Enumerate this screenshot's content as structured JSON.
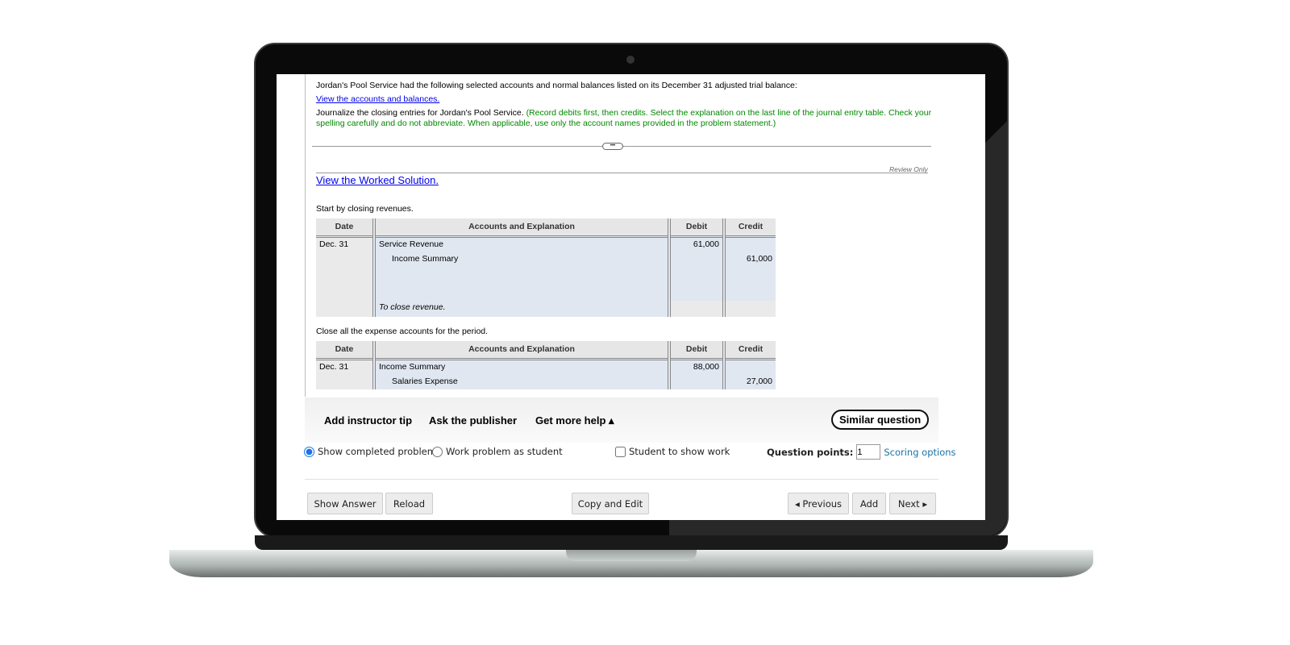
{
  "problem": {
    "intro": "Jordan's Pool Service had the following selected accounts and normal balances listed on its December 31 adjusted trial balance:",
    "link": "View the accounts and balances.",
    "instruction": "Journalize the closing entries for Jordan's Pool Service.",
    "instruction_note": "(Record debits first, then credits. Select the explanation on the last line of the journal entry table. Check your spelling carefully and do not abbreviate. When applicable, use only the account names provided in the problem statement.)",
    "expand": "•••"
  },
  "review_only": "Review Only",
  "worked_solution": "View the Worked Solution.",
  "headers": {
    "date": "Date",
    "accounts": "Accounts and Explanation",
    "debit": "Debit",
    "credit": "Credit"
  },
  "step1": {
    "label": "Start by closing revenues.",
    "date": "Dec. 31",
    "rows": [
      {
        "account": "Service Revenue",
        "debit": "61,000",
        "credit": ""
      },
      {
        "account": "Income Summary",
        "debit": "",
        "credit": "61,000"
      }
    ],
    "explanation": "To close revenue."
  },
  "step2": {
    "label": "Close all the expense accounts for the period.",
    "date": "Dec. 31",
    "rows": [
      {
        "account": "Income Summary",
        "debit": "88,000",
        "credit": ""
      },
      {
        "account": "Salaries Expense",
        "debit": "",
        "credit": "27,000"
      }
    ]
  },
  "help": {
    "tip": "Add instructor tip",
    "publisher": "Ask the publisher",
    "more": "Get more help ▴",
    "similar": "Similar question"
  },
  "options": {
    "show_completed": "Show completed problem",
    "work_as_student": "Work problem as student",
    "student_show_work": "Student to show work",
    "points_label": "Question points:",
    "points_value": "1",
    "scoring": "Scoring options",
    "selected": "show_completed"
  },
  "buttons": {
    "show_answer": "Show Answer",
    "reload": "Reload",
    "copy_edit": "Copy and Edit",
    "previous": "◂ Previous",
    "add": "Add",
    "next": "Next ▸"
  },
  "colors": {
    "link": "#0000ee",
    "instruction_note": "#008800",
    "scoring": "#1a73a8",
    "accent": "#1a73e8"
  }
}
